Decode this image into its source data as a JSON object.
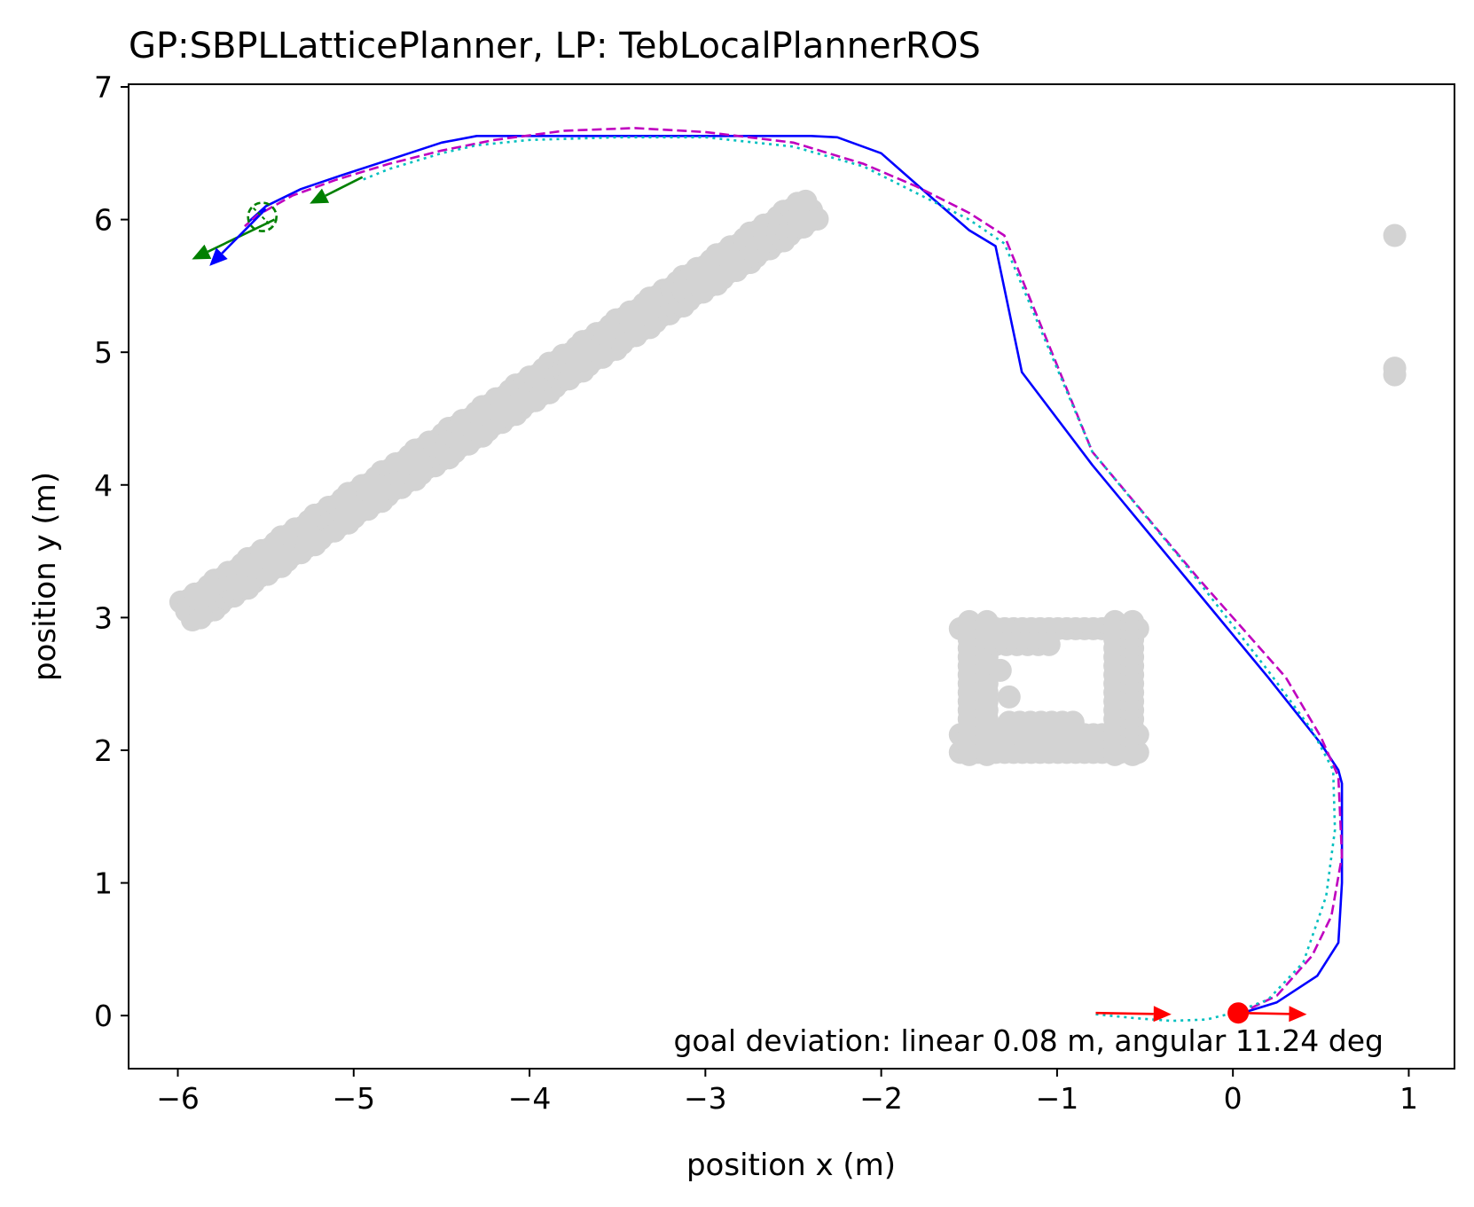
{
  "chart_data": {
    "type": "line",
    "title": "GP:SBPLLatticePlanner, LP: TebLocalPlannerROS",
    "xlabel": "position x (m)",
    "ylabel": "position y (m)",
    "xlim": [
      -6.28,
      1.26
    ],
    "ylim": [
      -0.4,
      7.02
    ],
    "x_ticks": [
      -6,
      -5,
      -4,
      -3,
      -2,
      -1,
      0,
      1
    ],
    "x_tick_labels": [
      "−6",
      "−5",
      "−4",
      "−3",
      "−2",
      "−1",
      "0",
      "1"
    ],
    "y_ticks": [
      0,
      1,
      2,
      3,
      4,
      5,
      6,
      7
    ],
    "y_tick_labels": [
      "0",
      "1",
      "2",
      "3",
      "4",
      "5",
      "6",
      "7"
    ],
    "grid": false,
    "annotation": "goal deviation: linear 0.08 m, angular 11.24 deg",
    "colors": {
      "obstacle": "#d3d3d3",
      "solid_path": "#0000ff",
      "dashed_path": "#bf00bf",
      "dotted_path": "#00bfbf",
      "start_marker": "#ff0000",
      "goal_arrow": "#008000"
    },
    "obstacles": {
      "diagonal_wall": {
        "from": [
          -5.95,
          3.05
        ],
        "to": [
          -2.4,
          6.1
        ]
      },
      "box": {
        "x": [
          -1.55,
          -0.52
        ],
        "y": [
          1.93,
          2.97
        ]
      },
      "right_points": [
        [
          0.92,
          5.88
        ],
        [
          0.92,
          4.88
        ],
        [
          0.92,
          4.83
        ]
      ]
    },
    "series": [
      {
        "style": "solid",
        "color": "#0000ff",
        "x": [
          0.03,
          0.25,
          0.48,
          0.6,
          0.62,
          0.62,
          0.6,
          0.5,
          0.2,
          -0.3,
          -0.8,
          -1.2,
          -1.35,
          -1.5,
          -1.7,
          -2.0,
          -2.25,
          -2.4,
          -3.0,
          -3.5,
          -4.0,
          -4.3,
          -4.5,
          -4.8,
          -5.1,
          -5.3,
          -5.5,
          -5.6
        ],
        "y": [
          0.01,
          0.1,
          0.3,
          0.55,
          1.0,
          1.75,
          1.85,
          2.05,
          2.55,
          3.35,
          4.15,
          4.85,
          5.8,
          5.92,
          6.15,
          6.5,
          6.62,
          6.63,
          6.63,
          6.63,
          6.63,
          6.63,
          6.58,
          6.45,
          6.32,
          6.23,
          6.1,
          5.98
        ]
      },
      {
        "style": "dashed",
        "color": "#bf00bf",
        "x": [
          0.03,
          0.25,
          0.45,
          0.56,
          0.62,
          0.6,
          0.5,
          0.3,
          -0.2,
          -0.8,
          -1.3,
          -1.5,
          -1.8,
          -2.1,
          -2.5,
          -3.0,
          -3.4,
          -3.8,
          -4.2,
          -4.5,
          -4.8,
          -5.1,
          -5.35,
          -5.55,
          -5.62
        ],
        "y": [
          0.01,
          0.15,
          0.45,
          0.75,
          1.2,
          1.8,
          2.1,
          2.55,
          3.3,
          4.25,
          5.88,
          6.05,
          6.25,
          6.42,
          6.58,
          6.66,
          6.69,
          6.67,
          6.6,
          6.52,
          6.42,
          6.3,
          6.18,
          6.03,
          5.95
        ]
      },
      {
        "style": "dotted",
        "color": "#00bfbf",
        "x": [
          -0.78,
          -0.55,
          -0.35,
          -0.15,
          0.0,
          0.2,
          0.4,
          0.53,
          0.58,
          0.57,
          0.45,
          0.2,
          -0.3,
          -0.8,
          -1.3,
          -1.5,
          -1.8,
          -2.1,
          -2.5,
          -3.0,
          -3.5,
          -4.0,
          -4.3,
          -4.5,
          -4.8,
          -4.95
        ],
        "y": [
          0.01,
          -0.02,
          -0.04,
          -0.03,
          0.02,
          0.12,
          0.4,
          0.9,
          1.4,
          1.85,
          2.15,
          2.6,
          3.45,
          4.25,
          5.82,
          6.0,
          6.2,
          6.4,
          6.55,
          6.62,
          6.62,
          6.6,
          6.56,
          6.5,
          6.38,
          6.3
        ]
      }
    ],
    "arrows": [
      {
        "color": "#ff0000",
        "from": [
          -0.78,
          0.02
        ],
        "to": [
          -0.35,
          0.01
        ]
      },
      {
        "color": "#ff0000",
        "from": [
          0.03,
          0.02
        ],
        "to": [
          0.42,
          0.01
        ]
      },
      {
        "color": "#008000",
        "from": [
          -4.95,
          6.32
        ],
        "to": [
          -5.25,
          6.12
        ]
      },
      {
        "color": "#008000",
        "from": [
          -5.45,
          6.0
        ],
        "to": [
          -5.92,
          5.7
        ]
      },
      {
        "color": "#0000ff",
        "from": [
          -5.5,
          6.08
        ],
        "to": [
          -5.82,
          5.65
        ]
      }
    ],
    "markers": [
      {
        "type": "filled-circle",
        "color": "#ff0000",
        "x": 0.03,
        "y": 0.02
      },
      {
        "type": "dashed-circle",
        "color": "#008000",
        "x": -5.52,
        "y": 6.02
      }
    ]
  }
}
